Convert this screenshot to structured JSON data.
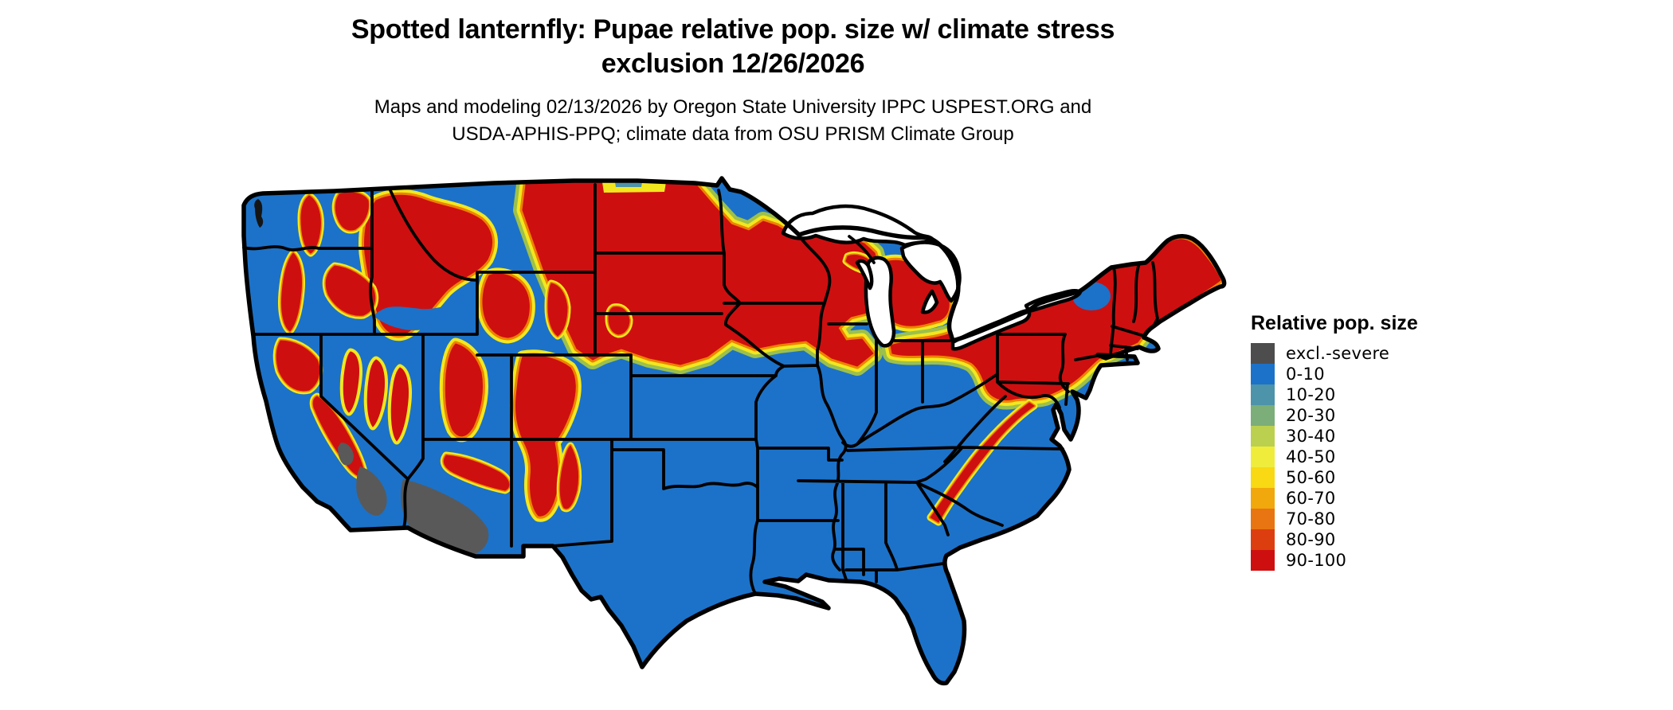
{
  "title": {
    "line1": "Spotted lanternfly: Pupae relative pop. size w/ climate stress",
    "line2": "exclusion 12/26/2026"
  },
  "subtitle": {
    "line1": "Maps and modeling 02/13/2026 by Oregon State University IPPC USPEST.ORG and",
    "line2": "USDA-APHIS-PPQ; climate data from OSU PRISM Climate Group"
  },
  "legend": {
    "title": "Relative pop. size",
    "items": [
      {
        "label": "excl.-severe",
        "color": "#4D4D4D"
      },
      {
        "label": "0-10",
        "color": "#1C72C8"
      },
      {
        "label": "10-20",
        "color": "#4D93A9"
      },
      {
        "label": "20-30",
        "color": "#7BAE79"
      },
      {
        "label": "30-40",
        "color": "#BCD04F"
      },
      {
        "label": "40-50",
        "color": "#EFEC3C"
      },
      {
        "label": "50-60",
        "color": "#F8D914"
      },
      {
        "label": "60-70",
        "color": "#F0A80C"
      },
      {
        "label": "70-80",
        "color": "#E87511"
      },
      {
        "label": "80-90",
        "color": "#DC3E10"
      },
      {
        "label": "90-100",
        "color": "#CE0F10"
      }
    ]
  },
  "map": {
    "colors": {
      "base": "#1C72C8",
      "red": "#CE0F10",
      "orange": "#EE8200",
      "yellow": "#F2E71F",
      "green": "#9CC04B",
      "teal": "#4D93A9",
      "gray": "#595959",
      "border": "#000000"
    },
    "regions": [
      {
        "area": "Northern Plains, Upper Midwest (E Montana, Dakotas, Minnesota, Wisconsin, N Iowa, N Michigan)",
        "value": "90-100"
      },
      {
        "area": "Northeast (Pennsylvania, New York, New England, N Ohio strip)",
        "value": "90-100"
      },
      {
        "area": "Northern and central Rockies (Idaho, W Montana, Yellowstone, Utah, Colorado, N New Mexico)",
        "value": "90-100"
      },
      {
        "area": "Cascades, Sierra Nevada, Nevada ranges, Black Hills, Appalachian ridge",
        "value": "90-100"
      },
      {
        "area": "Fringes of high-value zones",
        "value": "40-80 transition bands"
      },
      {
        "area": "Southwest Arizona desert and SE California desert",
        "value": "excl.-severe"
      },
      {
        "area": "South, Southeast, Texas, Florida, coastal lowlands and basins",
        "value": "0-10"
      }
    ]
  }
}
